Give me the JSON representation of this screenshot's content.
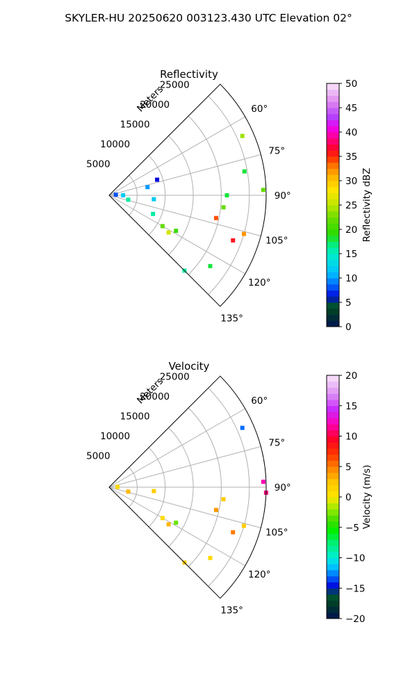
{
  "figure": {
    "suptitle": "SKYLER-HU  20250620  003123.430 UTC Elevation 02°"
  },
  "chart_data": [
    {
      "type": "heatmap",
      "title": "Reflectivity",
      "range_label": "Meters",
      "range_rings": [
        5000,
        10000,
        15000,
        20000,
        25000
      ],
      "range_ring_labels": [
        "5000",
        "10000",
        "15000",
        "20000",
        "25000"
      ],
      "rmax": 28000,
      "azimuth_range": [
        45,
        135
      ],
      "azimuth_labels": [
        "60°",
        "75°",
        "90°",
        "105°",
        "120°",
        "135°"
      ],
      "azimuth_tick_values": [
        60,
        75,
        90,
        105,
        120,
        135
      ],
      "grid_azimuths": [
        60,
        75,
        90,
        105,
        120
      ],
      "colorbar": {
        "label": "Reflectivity dBZ",
        "vmin": 0,
        "vmax": 50,
        "ticks": [
          0,
          5,
          10,
          15,
          20,
          25,
          30,
          35,
          40,
          45,
          50
        ],
        "tick_labels": [
          "0",
          "5",
          "10",
          "15",
          "20",
          "25",
          "30",
          "35",
          "40",
          "45",
          "50"
        ]
      },
      "echoes": [
        {
          "range": 1200,
          "azimuth": 85,
          "value": 8
        },
        {
          "range": 2500,
          "azimuth": 90,
          "value": 12
        },
        {
          "range": 3500,
          "azimuth": 103,
          "value": 16
        },
        {
          "range": 7000,
          "azimuth": 78,
          "value": 10
        },
        {
          "range": 9000,
          "azimuth": 72,
          "value": 6
        },
        {
          "range": 8000,
          "azimuth": 95,
          "value": 12
        },
        {
          "range": 8500,
          "azimuth": 113,
          "value": 16
        },
        {
          "range": 11000,
          "azimuth": 120,
          "value": 22
        },
        {
          "range": 12500,
          "azimuth": 122,
          "value": 26
        },
        {
          "range": 13500,
          "azimuth": 118,
          "value": 20
        },
        {
          "range": 20500,
          "azimuth": 96,
          "value": 22
        },
        {
          "range": 19500,
          "azimuth": 102,
          "value": 34
        },
        {
          "range": 21000,
          "azimuth": 90,
          "value": 18
        },
        {
          "range": 23500,
          "azimuth": 110,
          "value": 36
        },
        {
          "range": 25000,
          "azimuth": 106,
          "value": 32
        },
        {
          "range": 24500,
          "azimuth": 80,
          "value": 18
        },
        {
          "range": 26000,
          "azimuth": 66,
          "value": 24
        },
        {
          "range": 27500,
          "azimuth": 88,
          "value": 22
        },
        {
          "range": 22000,
          "azimuth": 125,
          "value": 18
        },
        {
          "range": 19000,
          "azimuth": 135,
          "value": 16
        }
      ]
    },
    {
      "type": "heatmap",
      "title": "Velocity",
      "range_label": "Meters",
      "range_rings": [
        5000,
        10000,
        15000,
        20000,
        25000
      ],
      "range_ring_labels": [
        "5000",
        "10000",
        "15000",
        "20000",
        "25000"
      ],
      "rmax": 28000,
      "azimuth_range": [
        45,
        135
      ],
      "azimuth_labels": [
        "60°",
        "75°",
        "90°",
        "105°",
        "120°",
        "135°"
      ],
      "azimuth_tick_values": [
        60,
        75,
        90,
        105,
        120,
        135
      ],
      "grid_azimuths": [
        60,
        75,
        90,
        105,
        120
      ],
      "colorbar": {
        "label": "Velocity (m/s)",
        "vmin": -20,
        "vmax": 20,
        "ticks": [
          -20,
          -15,
          -10,
          -5,
          0,
          5,
          10,
          15,
          20
        ],
        "tick_labels": [
          "−20",
          "−15",
          "−10",
          "−5",
          "0",
          "5",
          "10",
          "15",
          "20"
        ]
      },
      "echoes": [
        {
          "range": 1500,
          "azimuth": 88,
          "value": 1
        },
        {
          "range": 3500,
          "azimuth": 103,
          "value": 3
        },
        {
          "range": 8000,
          "azimuth": 95,
          "value": 2
        },
        {
          "range": 11000,
          "azimuth": 120,
          "value": 1
        },
        {
          "range": 12500,
          "azimuth": 122,
          "value": 3
        },
        {
          "range": 13500,
          "azimuth": 118,
          "value": -3
        },
        {
          "range": 20500,
          "azimuth": 96,
          "value": 2
        },
        {
          "range": 19500,
          "azimuth": 102,
          "value": 4
        },
        {
          "range": 23500,
          "azimuth": 110,
          "value": 5
        },
        {
          "range": 25000,
          "azimuth": 106,
          "value": 2
        },
        {
          "range": 26000,
          "azimuth": 66,
          "value": -13
        },
        {
          "range": 27500,
          "azimuth": 88,
          "value": 12
        },
        {
          "range": 28000,
          "azimuth": 92,
          "value": 11
        },
        {
          "range": 22000,
          "azimuth": 125,
          "value": 1
        },
        {
          "range": 19000,
          "azimuth": 135,
          "value": 2
        }
      ]
    }
  ]
}
